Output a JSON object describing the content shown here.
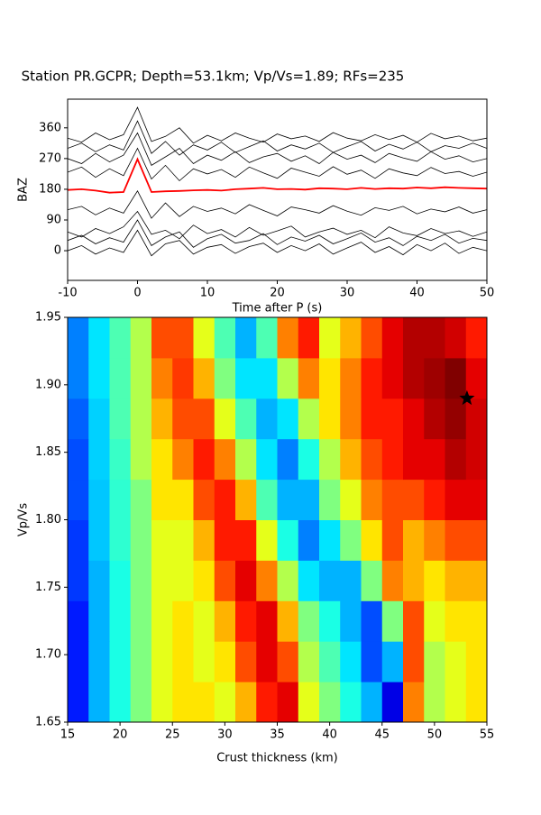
{
  "chart_data": [
    {
      "type": "line",
      "title": "Station PR.GCPR; Depth=53.1km; Vp/Vs=1.89; RFs=235",
      "xlabel": "Time after P (s)",
      "ylabel": "BAZ",
      "xlim": [
        -10,
        50
      ],
      "ylim": [
        -87,
        444
      ],
      "xticks": [
        -10,
        0,
        10,
        20,
        30,
        40,
        50
      ],
      "yticks": [
        0,
        90,
        180,
        270,
        360
      ],
      "x": [
        -10,
        -8,
        -6,
        -4,
        -2,
        0,
        2,
        4,
        6,
        8,
        10,
        12,
        14,
        16,
        18,
        20,
        22,
        24,
        26,
        28,
        30,
        32,
        34,
        36,
        38,
        40,
        42,
        44,
        46,
        48,
        50
      ],
      "series": [
        {
          "color": "#000000",
          "values": [
            0,
            15,
            -10,
            8,
            -5,
            60,
            -15,
            20,
            30,
            -10,
            10,
            18,
            -8,
            12,
            22,
            -5,
            15,
            0,
            20,
            -10,
            8,
            25,
            -5,
            12,
            -12,
            18,
            0,
            22,
            -8,
            10,
            0
          ]
        },
        {
          "color": "#000000",
          "values": [
            30,
            45,
            20,
            38,
            25,
            90,
            15,
            40,
            55,
            10,
            35,
            48,
            22,
            30,
            50,
            18,
            40,
            28,
            45,
            20,
            35,
            52,
            25,
            38,
            15,
            42,
            30,
            48,
            22,
            36,
            30
          ]
        },
        {
          "color": "#000000",
          "values": [
            55,
            40,
            65,
            50,
            70,
            115,
            48,
            60,
            35,
            75,
            50,
            62,
            40,
            68,
            45,
            58,
            72,
            40,
            55,
            66,
            48,
            60,
            38,
            70,
            52,
            44,
            65,
            50,
            58,
            42,
            55
          ]
        },
        {
          "color": "#000000",
          "values": [
            120,
            130,
            105,
            125,
            110,
            175,
            95,
            140,
            100,
            130,
            115,
            125,
            108,
            135,
            118,
            102,
            128,
            120,
            110,
            132,
            116,
            104,
            126,
            118,
            130,
            108,
            122,
            114,
            128,
            110,
            120
          ]
        },
        {
          "color": "#000000",
          "values": [
            230,
            245,
            215,
            240,
            220,
            300,
            210,
            250,
            205,
            240,
            225,
            238,
            215,
            245,
            228,
            212,
            242,
            230,
            218,
            246,
            224,
            236,
            212,
            240,
            228,
            220,
            244,
            226,
            232,
            218,
            230
          ]
        },
        {
          "color": "#000000",
          "values": [
            270,
            255,
            285,
            260,
            280,
            345,
            250,
            275,
            300,
            255,
            280,
            265,
            290,
            258,
            275,
            285,
            262,
            278,
            255,
            288,
            268,
            280,
            258,
            285,
            272,
            262,
            290,
            268,
            278,
            260,
            270
          ]
        },
        {
          "color": "#000000",
          "values": [
            300,
            315,
            290,
            310,
            295,
            380,
            285,
            320,
            280,
            310,
            295,
            318,
            288,
            305,
            322,
            292,
            310,
            298,
            315,
            288,
            305,
            320,
            292,
            312,
            298,
            318,
            290,
            308,
            300,
            315,
            300
          ]
        },
        {
          "color": "#000000",
          "values": [
            330,
            318,
            345,
            325,
            340,
            420,
            320,
            335,
            360,
            315,
            338,
            322,
            345,
            330,
            318,
            342,
            328,
            336,
            320,
            346,
            330,
            322,
            340,
            326,
            338,
            318,
            344,
            328,
            336,
            322,
            330
          ]
        },
        {
          "color": "#ff0000",
          "values": [
            178,
            180,
            176,
            170,
            172,
            268,
            172,
            174,
            175,
            177,
            178,
            176,
            180,
            182,
            184,
            180,
            181,
            179,
            183,
            182,
            180,
            184,
            181,
            183,
            182,
            185,
            183,
            186,
            184,
            183,
            182
          ]
        }
      ]
    },
    {
      "type": "heatmap",
      "xlabel": "Crust thickness (km)",
      "ylabel": "Vp/Vs",
      "colormap": "jet",
      "xlim": [
        15,
        55
      ],
      "ylim": [
        1.65,
        1.95
      ],
      "xticks": [
        15,
        20,
        25,
        30,
        35,
        40,
        45,
        50,
        55
      ],
      "yticks": [
        1.65,
        {
          "value": 1.7,
          "label": "1.70"
        },
        1.75,
        {
          "value": 1.8,
          "label": "1.80"
        },
        1.85,
        {
          "value": 1.9,
          "label": "1.90"
        },
        1.95
      ],
      "x": [
        15,
        17,
        19,
        21,
        23,
        25,
        27,
        29,
        31,
        33,
        35,
        37,
        39,
        41,
        43,
        45,
        47,
        49,
        51,
        53,
        55
      ],
      "y": [
        1.65,
        1.68,
        1.71,
        1.74,
        1.77,
        1.8,
        1.83,
        1.86,
        1.89,
        1.92,
        1.95
      ],
      "values": [
        [
          0.15,
          0.3,
          0.4,
          0.5,
          0.6,
          0.65,
          0.65,
          0.6,
          0.7,
          0.85,
          0.9,
          0.6,
          0.5,
          0.4,
          0.3,
          0.1,
          0.75,
          0.55,
          0.6,
          0.65
        ],
        [
          0.15,
          0.3,
          0.4,
          0.5,
          0.6,
          0.65,
          0.6,
          0.65,
          0.8,
          0.9,
          0.8,
          0.55,
          0.45,
          0.35,
          0.2,
          0.3,
          0.8,
          0.55,
          0.6,
          0.65
        ],
        [
          0.15,
          0.3,
          0.4,
          0.5,
          0.6,
          0.65,
          0.6,
          0.7,
          0.85,
          0.9,
          0.7,
          0.5,
          0.4,
          0.3,
          0.2,
          0.5,
          0.8,
          0.6,
          0.65,
          0.65
        ],
        [
          0.18,
          0.3,
          0.4,
          0.5,
          0.6,
          0.6,
          0.65,
          0.8,
          0.9,
          0.75,
          0.55,
          0.35,
          0.3,
          0.3,
          0.5,
          0.75,
          0.7,
          0.65,
          0.7,
          0.7
        ],
        [
          0.18,
          0.32,
          0.42,
          0.5,
          0.6,
          0.6,
          0.7,
          0.85,
          0.85,
          0.6,
          0.4,
          0.25,
          0.35,
          0.5,
          0.65,
          0.8,
          0.7,
          0.75,
          0.8,
          0.8
        ],
        [
          0.2,
          0.32,
          0.42,
          0.5,
          0.65,
          0.65,
          0.8,
          0.85,
          0.7,
          0.45,
          0.3,
          0.3,
          0.5,
          0.6,
          0.75,
          0.8,
          0.8,
          0.85,
          0.9,
          0.9
        ],
        [
          0.2,
          0.33,
          0.43,
          0.55,
          0.65,
          0.75,
          0.85,
          0.75,
          0.55,
          0.35,
          0.25,
          0.4,
          0.55,
          0.7,
          0.8,
          0.85,
          0.9,
          0.9,
          0.95,
          0.92
        ],
        [
          0.22,
          0.33,
          0.45,
          0.55,
          0.7,
          0.8,
          0.8,
          0.6,
          0.45,
          0.3,
          0.35,
          0.55,
          0.65,
          0.75,
          0.85,
          0.85,
          0.9,
          0.95,
          0.98,
          0.92
        ],
        [
          0.25,
          0.35,
          0.45,
          0.55,
          0.75,
          0.82,
          0.7,
          0.5,
          0.35,
          0.35,
          0.55,
          0.75,
          0.65,
          0.75,
          0.85,
          0.9,
          0.95,
          0.97,
          1.0,
          0.9
        ],
        [
          0.25,
          0.35,
          0.45,
          0.55,
          0.8,
          0.8,
          0.6,
          0.45,
          0.3,
          0.45,
          0.75,
          0.85,
          0.6,
          0.7,
          0.8,
          0.9,
          0.95,
          0.95,
          0.92,
          0.85
        ]
      ],
      "marker": {
        "x": [
          53.1
        ],
        "y": [
          1.89
        ],
        "color": "#000000"
      }
    }
  ]
}
